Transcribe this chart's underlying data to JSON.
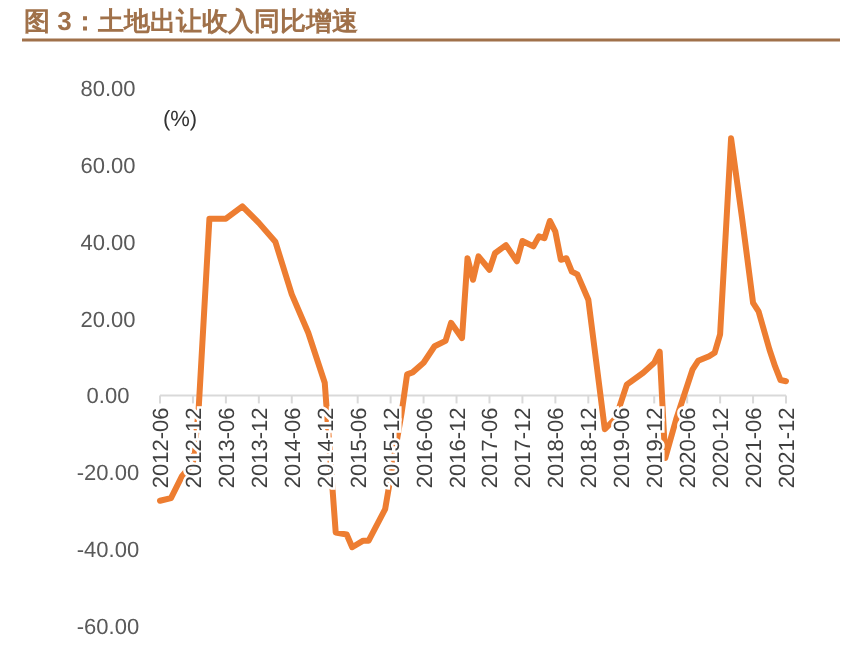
{
  "chart_data": {
    "type": "line",
    "title": "图 3：土地出让收入同比增速",
    "ylabel": "(%)",
    "color": "#ed7d31",
    "x": [
      "2012-06",
      "2012-08",
      "2012-10",
      "2012-12",
      "2013-01",
      "2013-03",
      "2013-06",
      "2013-09",
      "2013-12",
      "2014-03",
      "2014-06",
      "2014-09",
      "2014-12",
      "2015-02",
      "2015-04",
      "2015-05",
      "2015-07",
      "2015-08",
      "2015-11",
      "2016-02",
      "2016-03",
      "2016-04",
      "2016-06",
      "2016-08",
      "2016-10",
      "2016-11",
      "2017-01",
      "2017-02",
      "2017-03",
      "2017-04",
      "2017-06",
      "2017-07",
      "2017-09",
      "2017-11",
      "2017-12",
      "2018-02",
      "2018-03",
      "2018-04",
      "2018-05",
      "2018-06",
      "2018-07",
      "2018-08",
      "2018-09",
      "2018-10",
      "2018-12",
      "2019-03",
      "2019-05",
      "2019-07",
      "2019-10",
      "2019-12",
      "2020-01",
      "2020-02",
      "2020-04",
      "2020-07",
      "2020-08",
      "2020-10",
      "2020-11",
      "2020-12",
      "2021-02",
      "2021-04",
      "2021-06",
      "2021-07",
      "2021-09",
      "2021-10",
      "2021-11",
      "2021-12"
    ],
    "values": [
      -27.4,
      -26.7,
      -21,
      -17.6,
      -4.5,
      46,
      46,
      49.2,
      44.9,
      40,
      26.3,
      16.3,
      3.3,
      -35.7,
      -36.2,
      -39.5,
      -37.8,
      -37.8,
      -29.6,
      -4.5,
      5.5,
      6,
      8.5,
      12.8,
      14.2,
      18.9,
      14.9,
      35.7,
      30.1,
      36.2,
      32.7,
      37,
      39.1,
      34.9,
      40.2,
      38.8,
      41.4,
      40.9,
      45.4,
      42.6,
      35.3,
      35.7,
      32.2,
      31.5,
      24.9,
      -8.8,
      -5.9,
      2.8,
      5.9,
      8.5,
      11.4,
      -16.3,
      -6.2,
      6.8,
      9,
      10.2,
      11.1,
      15.9,
      66.9,
      46.1,
      24.1,
      21.9,
      11.9,
      7.6,
      4,
      3.7
    ],
    "xlim": [
      "2012-06",
      "2021-12"
    ],
    "xticks": [
      "2012-06",
      "2012-12",
      "2013-06",
      "2013-12",
      "2014-06",
      "2014-12",
      "2015-06",
      "2015-12",
      "2016-06",
      "2016-12",
      "2017-06",
      "2017-12",
      "2018-06",
      "2018-12",
      "2019-06",
      "2019-12",
      "2020-06",
      "2020-12",
      "2021-06",
      "2021-12"
    ],
    "ylim": [
      -60,
      80
    ],
    "yticks": [
      {
        "value": -60,
        "label": "-60.00"
      },
      {
        "value": -40,
        "label": "-40.00"
      },
      {
        "value": -20,
        "label": "-20.00"
      },
      {
        "value": 0,
        "label": "0.00"
      },
      {
        "value": 20,
        "label": "20.00"
      },
      {
        "value": 40,
        "label": "40.00"
      },
      {
        "value": 60,
        "label": "60.00"
      },
      {
        "value": 80,
        "label": "80.00"
      }
    ]
  }
}
